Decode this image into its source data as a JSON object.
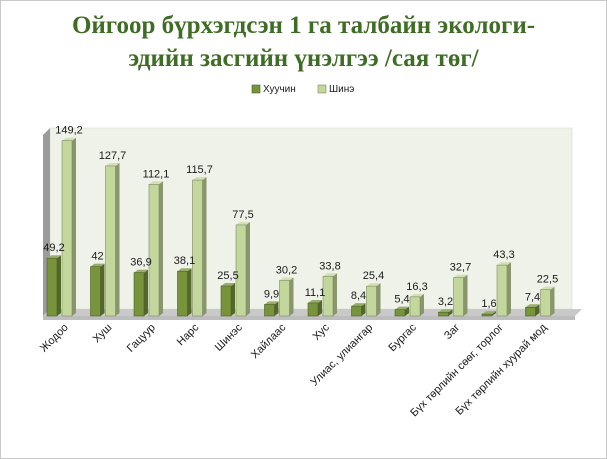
{
  "chart_data": {
    "type": "bar",
    "title_lines": [
      "Ойгоор бүрхэгдсэн 1 га талбайн экологи-",
      "эдийн засгийн үнэлгээ /сая төг/"
    ],
    "xlabel": "",
    "ylabel": "",
    "ylim": [
      0,
      160
    ],
    "grid": false,
    "legend_position": "top",
    "categories": [
      "Жодоо",
      "Хуш",
      "Гацуур",
      "Нарс",
      "Шинэс",
      "Хайлаас",
      "Хус",
      "Улиас, улиангар",
      "Бургас",
      "Заг",
      "Бүх төрлийн сөөг, торлог",
      "Бүх төрлийн хуурай мод"
    ],
    "series": [
      {
        "name": "Хуучин",
        "color": "#77933c",
        "values": [
          49.2,
          42,
          36.9,
          38.1,
          25.5,
          9.9,
          11.1,
          8.4,
          5.4,
          3.2,
          1.6,
          7.4
        ],
        "labels": [
          "49,2",
          "42",
          "36,9",
          "38,1",
          "25,5",
          "9,9",
          "11,1",
          "8,4",
          "5,4",
          "3,2",
          "1,6",
          "7,4"
        ]
      },
      {
        "name": "Шинэ",
        "color": "#c3d69b",
        "values": [
          149.2,
          127.7,
          112.1,
          115.7,
          77.5,
          30.2,
          33.8,
          25.4,
          16.3,
          32.7,
          43.3,
          22.5
        ],
        "labels": [
          "149,2",
          "127,7",
          "112,1",
          "115,7",
          "77,5",
          "30,2",
          "33,8",
          "25,4",
          "16,3",
          "32,7",
          "43,3",
          "22,5"
        ]
      }
    ]
  }
}
